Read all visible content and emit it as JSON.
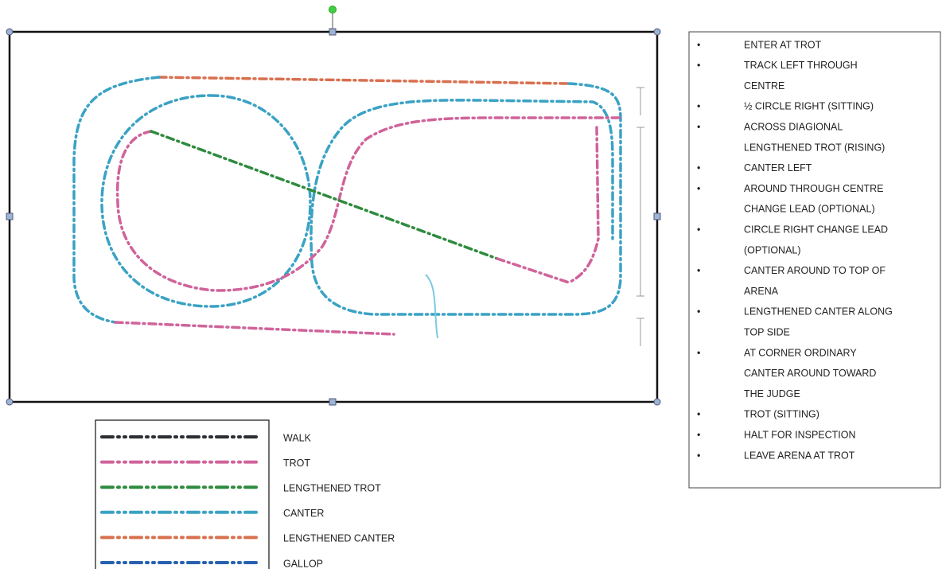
{
  "legend": {
    "items": [
      {
        "label": "WALK",
        "color": "#2b2f33"
      },
      {
        "label": "TROT",
        "color": "#d0639a"
      },
      {
        "label": "LENGTHENED TROT",
        "color": "#2e8b3e"
      },
      {
        "label": "CANTER",
        "color": "#3aa2c4"
      },
      {
        "label": "LENGTHENED CANTER",
        "color": "#d8704f"
      },
      {
        "label": "GALLOP",
        "color": "#2860b0"
      }
    ]
  },
  "instructions": {
    "items": [
      [
        "ENTER AT TROT"
      ],
      [
        "TRACK LEFT THROUGH",
        "CENTRE"
      ],
      [
        "½ CIRCLE RIGHT (SITTING)"
      ],
      [
        "ACROSS DIAGIONAL",
        "LENGTHENED TROT (RISING)"
      ],
      [
        "CANTER LEFT"
      ],
      [
        "AROUND THROUGH CENTRE",
        "CHANGE  LEAD (OPTIONAL)"
      ],
      [
        "CIRCLE RIGHT CHANGE  LEAD",
        "(OPTIONAL)"
      ],
      [
        "CANTER AROUND TO TOP OF",
        "ARENA"
      ],
      [
        "LENGTHENED CANTER ALONG",
        "TOP SIDE"
      ],
      [
        "AT CORNER ORDINARY",
        "CANTER AROUND TOWARD",
        "THE JUDGE"
      ],
      [
        "TROT (SITTING)"
      ],
      [
        "HALT FOR INSPECTION"
      ],
      [
        "LEAVE  ARENA AT TROT"
      ]
    ]
  }
}
